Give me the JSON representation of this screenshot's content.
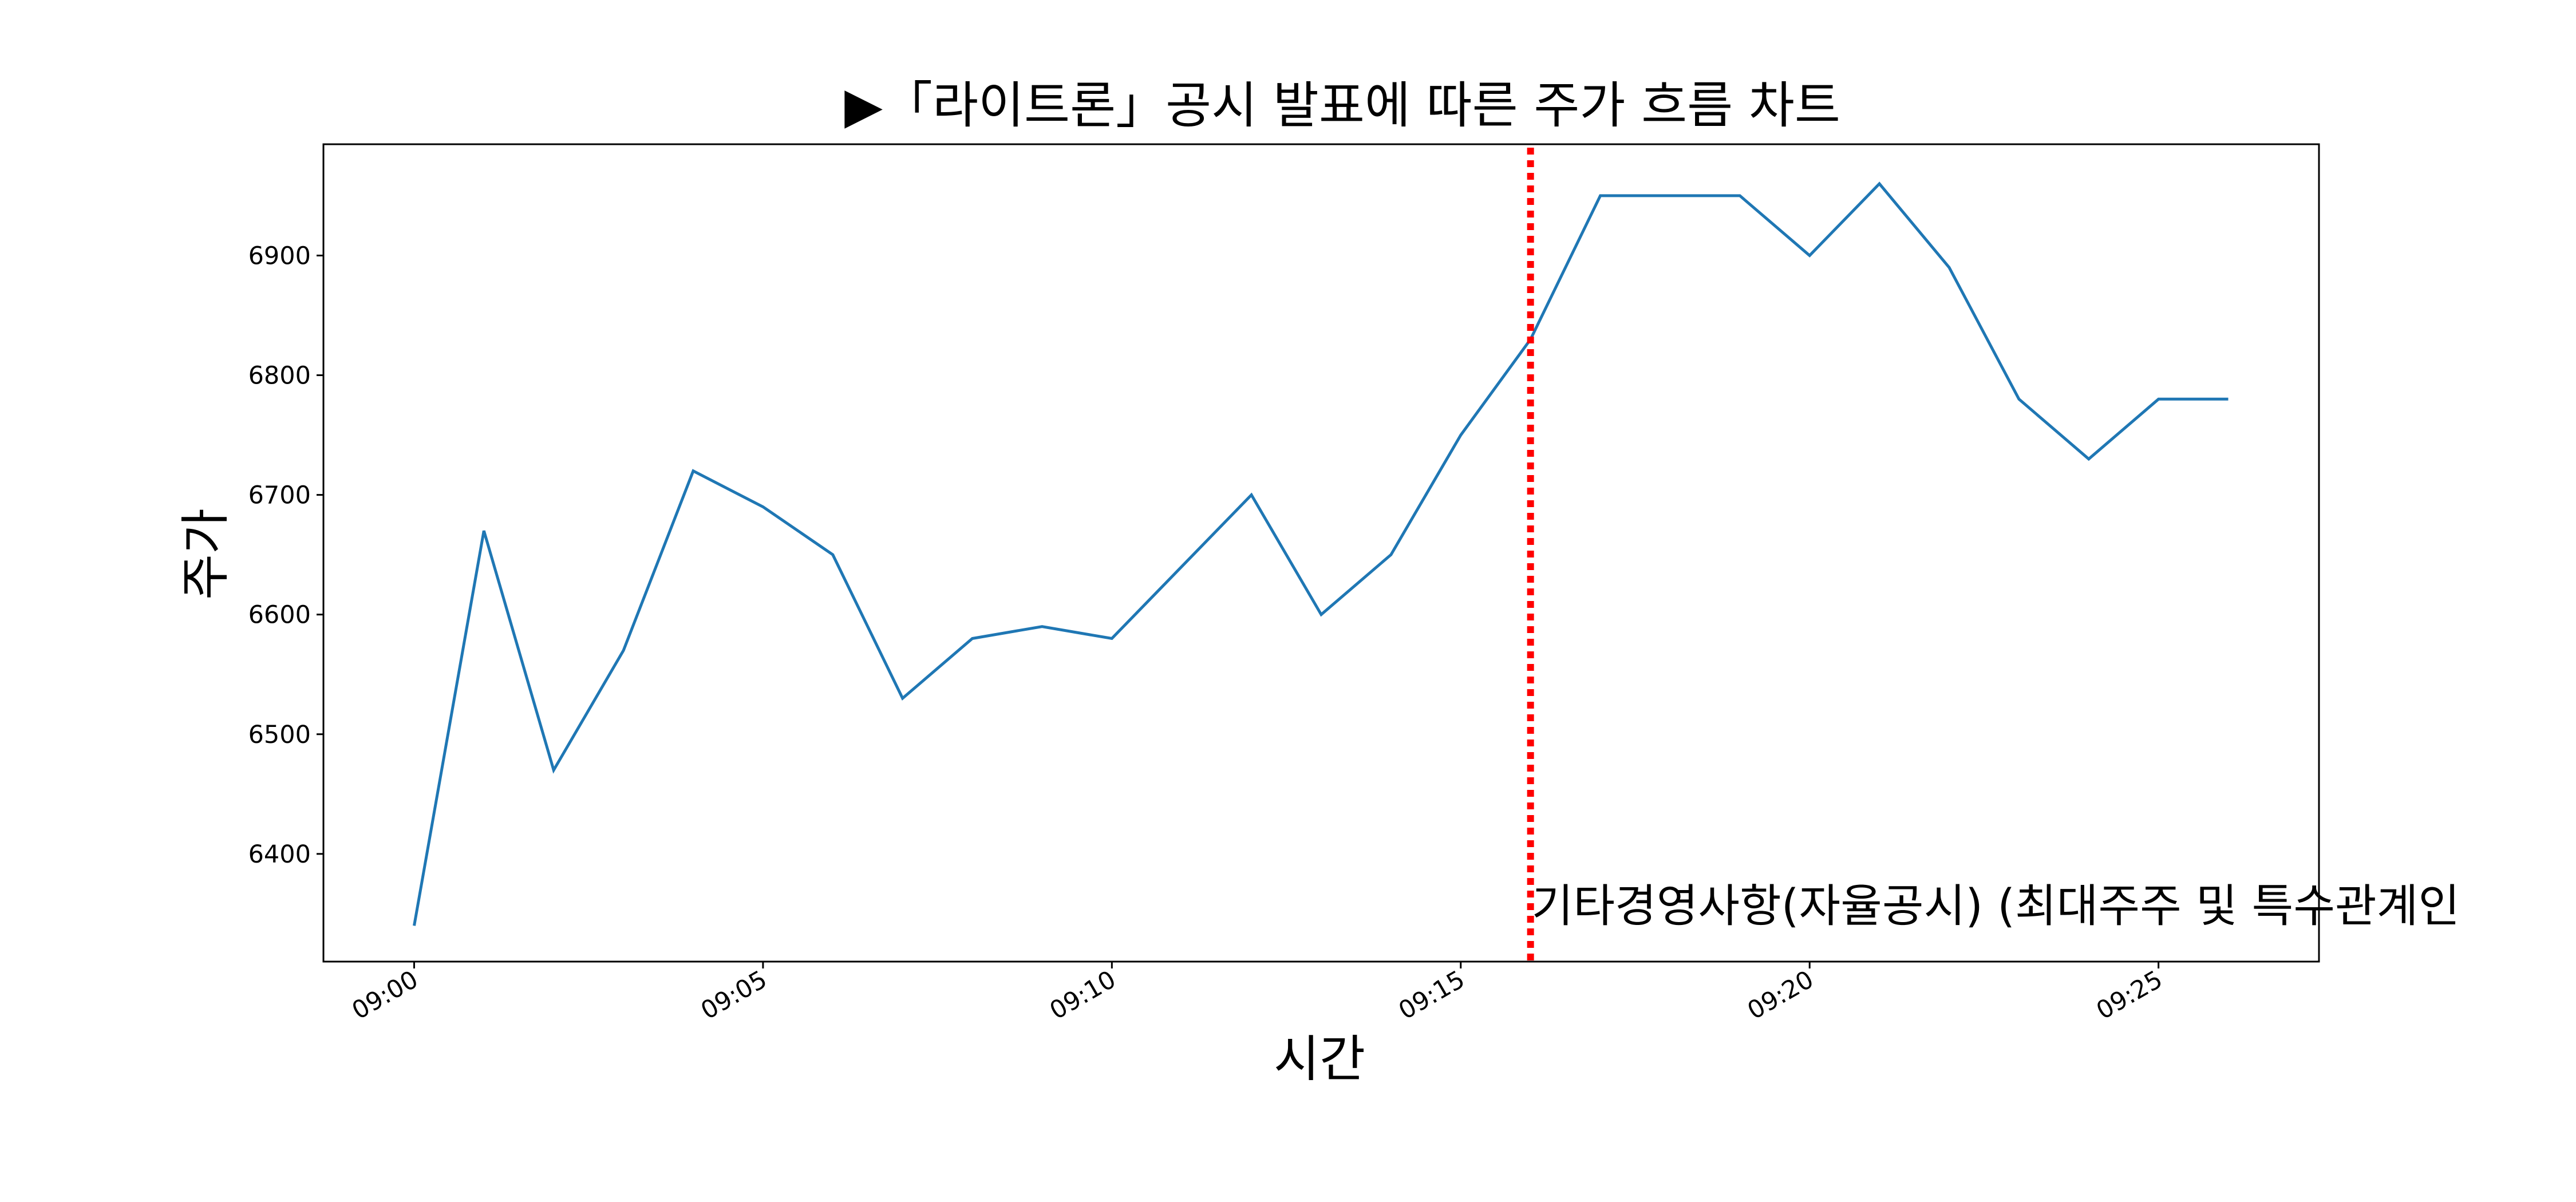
{
  "chart_data": {
    "type": "line",
    "title": "▶「라이트론」공시 발표에 따른 주가 흐름 차트",
    "xlabel": "시간",
    "ylabel": "주가",
    "x": [
      "09:00",
      "09:01",
      "09:02",
      "09:03",
      "09:04",
      "09:05",
      "09:06",
      "09:07",
      "09:08",
      "09:09",
      "09:10",
      "09:11",
      "09:12",
      "09:13",
      "09:14",
      "09:15",
      "09:16",
      "09:17",
      "09:18",
      "09:19",
      "09:20",
      "09:21",
      "09:22",
      "09:23",
      "09:24",
      "09:25",
      "09:26"
    ],
    "series": [
      {
        "values": [
          6340,
          6670,
          6470,
          6570,
          6720,
          6690,
          6650,
          6530,
          6580,
          6590,
          6580,
          6640,
          6700,
          6600,
          6650,
          6750,
          6830,
          6950,
          6950,
          6950,
          6900,
          6960,
          6890,
          6780,
          6730,
          6780,
          6780
        ],
        "color": "#1f77b4"
      }
    ],
    "x_ticks": [
      "09:00",
      "09:05",
      "09:10",
      "09:15",
      "09:20",
      "09:25"
    ],
    "y_ticks": [
      6400,
      6500,
      6600,
      6700,
      6800,
      6900
    ],
    "xlim": [
      -1.3,
      27.3
    ],
    "ylim": [
      6310,
      6993
    ],
    "grid": false,
    "legend": "none",
    "event_line": {
      "x": "09:16",
      "color": "#ff0000",
      "style": "dotted",
      "label": "기타경영사항(자율공시) (최대주주 및 특수관계인"
    }
  }
}
